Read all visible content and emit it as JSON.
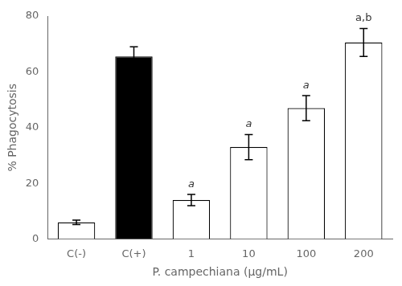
{
  "chart_data": {
    "type": "bar",
    "categories": [
      "C(-)",
      "C(+)",
      "1",
      "10",
      "100",
      "200"
    ],
    "values": [
      6.0,
      65.5,
      14.0,
      33.0,
      47.0,
      70.5
    ],
    "errors": [
      0.8,
      3.5,
      2.0,
      4.5,
      4.5,
      5.0
    ],
    "colors": [
      "white",
      "black",
      "white",
      "white",
      "white",
      "white"
    ],
    "annotations": [
      null,
      null,
      "a",
      "a",
      "a",
      "a,b"
    ],
    "ylabel": "% Phagocytosis",
    "xlabel": "P. campechiana (µg/mL)",
    "ylim": [
      0,
      80
    ],
    "yticks": [
      0,
      20,
      40,
      60,
      80
    ],
    "grid": false
  }
}
